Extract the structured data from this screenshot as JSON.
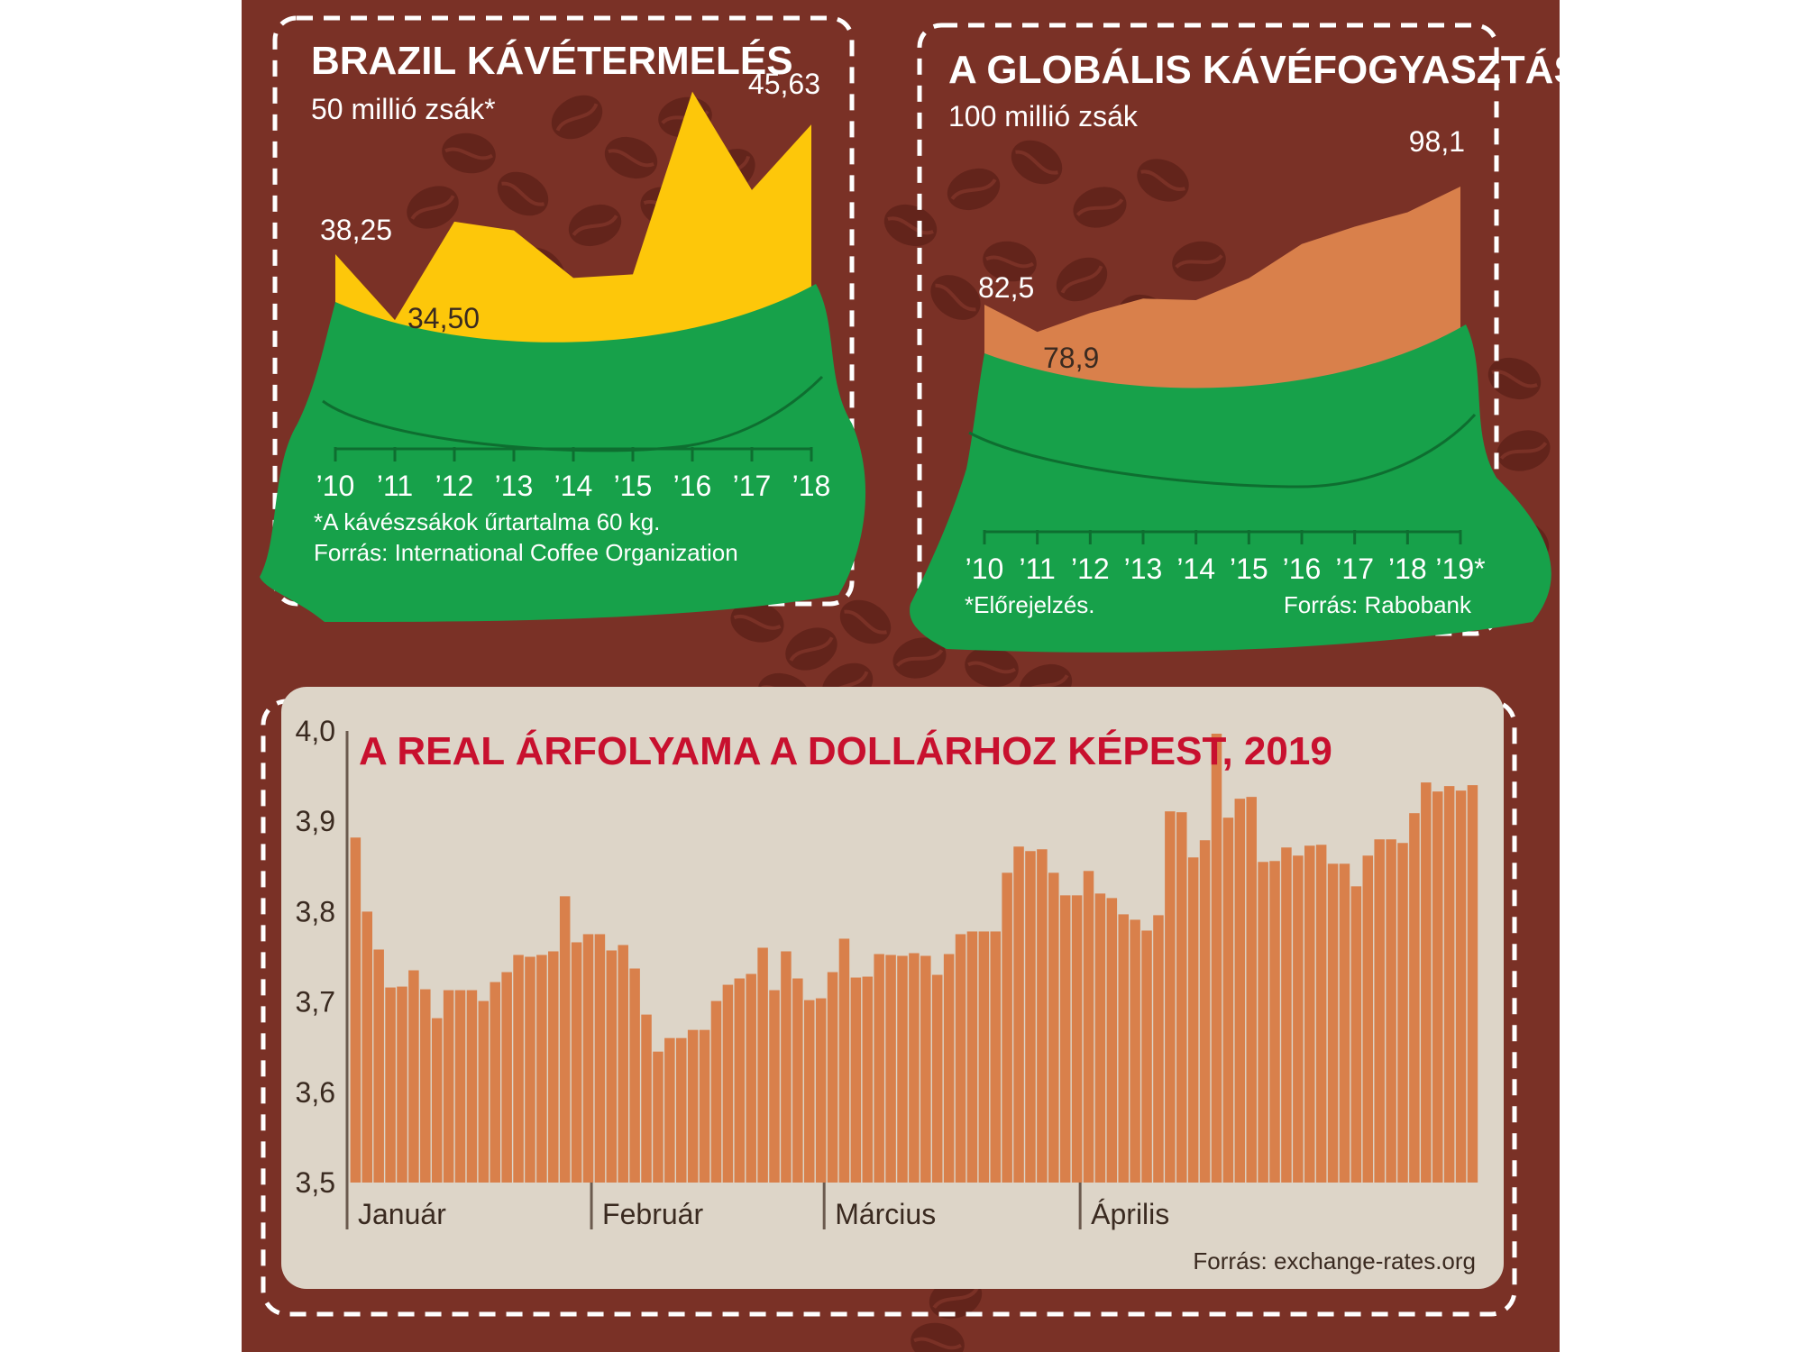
{
  "colors": {
    "background": "#7a3126",
    "bean": "#63241b",
    "sack": "#17a14a",
    "sack_line": "#0e6e30",
    "brazil_fill": "#fdc70a",
    "global_fill": "#d9804b",
    "bar": "#d9804b",
    "panel": "#ddd5c8",
    "title_red": "#c8102e"
  },
  "brazil": {
    "title": "BRAZIL KÁVÉTERMELÉS",
    "subtitle": "50 millió zsák*",
    "label_first": "38,25",
    "label_min": "34,50",
    "label_last": "45,63",
    "note": "*A kávészsákok űrtartalma 60 kg.",
    "source": "Forrás: International Coffee Organization"
  },
  "global": {
    "title": "A GLOBÁLIS KÁVÉFOGYASZTÁS",
    "subtitle": "100 millió zsák",
    "label_first": "82,5",
    "label_min": "78,9",
    "label_last": "98,1",
    "note": "*Előrejelzés.",
    "source": "Forrás: Rabobank"
  },
  "real": {
    "title": "A REAL ÁRFOLYAMA A DOLLÁRHOZ KÉPEST, 2019",
    "source": "Forrás: exchange-rates.org",
    "months": [
      "Január",
      "Február",
      "Március",
      "Április"
    ]
  },
  "chart_data": [
    {
      "type": "area",
      "title": "BRAZIL KÁVÉTERMELÉS",
      "subtitle": "50 millió zsák*",
      "x": [
        "’10",
        "’11",
        "’12",
        "’13",
        "’14",
        "’15",
        "’16",
        "’17",
        "’18"
      ],
      "values": [
        38.25,
        34.5,
        40.1,
        39.6,
        36.9,
        37.1,
        47.5,
        41.9,
        45.63
      ],
      "labels": {
        "0": "38,25",
        "1": "34,50",
        "8": "45,63"
      }
    },
    {
      "type": "area",
      "title": "A GLOBÁLIS KÁVÉFOGYASZTÁS",
      "subtitle": "100 millió zsák",
      "x": [
        "’10",
        "’11",
        "’12",
        "’13",
        "’14",
        "’15",
        "’16",
        "’17",
        "’18",
        "’19*"
      ],
      "values": [
        82.5,
        78.9,
        81.4,
        83.3,
        83.1,
        86.0,
        90.5,
        92.8,
        94.7,
        98.1
      ],
      "labels": {
        "0": "82,5",
        "1": "78,9",
        "9": "98,1"
      }
    },
    {
      "type": "bar",
      "title": "A REAL ÁRFOLYAMA A DOLLÁRHOZ KÉPEST, 2019",
      "ylim": [
        3.5,
        4.0
      ],
      "y_ticks": [
        "3,5",
        "3,6",
        "3,7",
        "3,8",
        "3,9",
        "4,0"
      ],
      "x_labels": [
        "Január",
        "Február",
        "Március",
        "Április"
      ],
      "values": [
        3.882,
        3.8,
        3.758,
        3.716,
        3.717,
        3.735,
        3.714,
        3.682,
        3.713,
        3.713,
        3.713,
        3.701,
        3.722,
        3.733,
        3.752,
        3.75,
        3.752,
        3.756,
        3.817,
        3.766,
        3.775,
        3.775,
        3.757,
        3.763,
        3.737,
        3.686,
        3.645,
        3.66,
        3.66,
        3.669,
        3.669,
        3.701,
        3.719,
        3.726,
        3.731,
        3.76,
        3.713,
        3.756,
        3.726,
        3.702,
        3.704,
        3.733,
        3.77,
        3.727,
        3.728,
        3.753,
        3.752,
        3.751,
        3.754,
        3.751,
        3.73,
        3.753,
        3.775,
        3.778,
        3.778,
        3.778,
        3.843,
        3.872,
        3.867,
        3.869,
        3.843,
        3.818,
        3.818,
        3.845,
        3.82,
        3.815,
        3.797,
        3.791,
        3.779,
        3.796,
        3.911,
        3.91,
        3.86,
        3.879,
        3.997,
        3.904,
        3.925,
        3.927,
        3.855,
        3.856,
        3.871,
        3.862,
        3.873,
        3.874,
        3.853,
        3.853,
        3.828,
        3.862,
        3.88,
        3.88,
        3.876,
        3.909,
        3.943,
        3.933,
        3.939,
        3.934,
        3.94
      ]
    }
  ]
}
